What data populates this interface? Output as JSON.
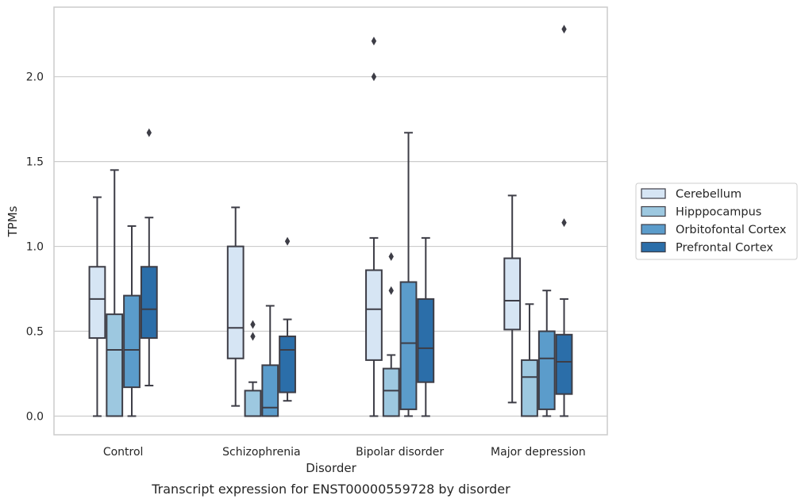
{
  "chart_data": {
    "type": "box",
    "title": "",
    "caption": "Transcript expression for ENST00000559728 by disorder",
    "xlabel": "Disorder",
    "ylabel": "TPMs",
    "ylim": [
      -0.11,
      2.41
    ],
    "yticks": [
      0.0,
      0.5,
      1.0,
      1.5,
      2.0
    ],
    "ytick_labels": [
      "0.0",
      "0.5",
      "1.0",
      "1.5",
      "2.0"
    ],
    "grid": "horizontal",
    "legend_position": "right-outside",
    "categories": [
      "Control",
      "Schizophrenia",
      "Bipolar disorder",
      "Major depression"
    ],
    "series": [
      {
        "name": "Cerebellum",
        "color": "#d6e5f4",
        "boxes": [
          {
            "whisker_low": 0.0,
            "q1": 0.46,
            "median": 0.69,
            "q3": 0.88,
            "whisker_high": 1.29,
            "outliers": []
          },
          {
            "whisker_low": 0.06,
            "q1": 0.34,
            "median": 0.52,
            "q3": 1.0,
            "whisker_high": 1.23,
            "outliers": []
          },
          {
            "whisker_low": 0.0,
            "q1": 0.33,
            "median": 0.63,
            "q3": 0.86,
            "whisker_high": 1.05,
            "outliers": [
              2.0,
              2.21
            ]
          },
          {
            "whisker_low": 0.08,
            "q1": 0.51,
            "median": 0.68,
            "q3": 0.93,
            "whisker_high": 1.3,
            "outliers": []
          }
        ]
      },
      {
        "name": "Hipppocampus",
        "color": "#9dc8e0",
        "boxes": [
          {
            "whisker_low": 0.0,
            "q1": 0.0,
            "median": 0.39,
            "q3": 0.6,
            "whisker_high": 1.45,
            "outliers": []
          },
          {
            "whisker_low": 0.0,
            "q1": 0.0,
            "median": 0.0,
            "q3": 0.15,
            "whisker_high": 0.2,
            "outliers": [
              0.47,
              0.54
            ]
          },
          {
            "whisker_low": 0.0,
            "q1": 0.0,
            "median": 0.15,
            "q3": 0.28,
            "whisker_high": 0.36,
            "outliers": [
              0.74,
              0.94
            ]
          },
          {
            "whisker_low": 0.0,
            "q1": 0.0,
            "median": 0.23,
            "q3": 0.33,
            "whisker_high": 0.66,
            "outliers": []
          }
        ]
      },
      {
        "name": "Orbitofontal Cortex",
        "color": "#5b9ccb",
        "boxes": [
          {
            "whisker_low": 0.0,
            "q1": 0.17,
            "median": 0.39,
            "q3": 0.71,
            "whisker_high": 1.12,
            "outliers": []
          },
          {
            "whisker_low": 0.0,
            "q1": 0.0,
            "median": 0.05,
            "q3": 0.3,
            "whisker_high": 0.65,
            "outliers": []
          },
          {
            "whisker_low": 0.0,
            "q1": 0.04,
            "median": 0.43,
            "q3": 0.79,
            "whisker_high": 1.67,
            "outliers": []
          },
          {
            "whisker_low": 0.0,
            "q1": 0.04,
            "median": 0.34,
            "q3": 0.5,
            "whisker_high": 0.74,
            "outliers": []
          }
        ]
      },
      {
        "name": "Prefrontal Cortex",
        "color": "#2b6ea9",
        "boxes": [
          {
            "whisker_low": 0.18,
            "q1": 0.46,
            "median": 0.63,
            "q3": 0.88,
            "whisker_high": 1.17,
            "outliers": [
              1.67
            ]
          },
          {
            "whisker_low": 0.09,
            "q1": 0.14,
            "median": 0.39,
            "q3": 0.47,
            "whisker_high": 0.57,
            "outliers": [
              1.03
            ]
          },
          {
            "whisker_low": 0.0,
            "q1": 0.2,
            "median": 0.4,
            "q3": 0.69,
            "whisker_high": 1.05,
            "outliers": []
          },
          {
            "whisker_low": 0.0,
            "q1": 0.13,
            "median": 0.32,
            "q3": 0.48,
            "whisker_high": 0.69,
            "outliers": [
              1.14,
              2.28
            ]
          }
        ]
      }
    ]
  }
}
